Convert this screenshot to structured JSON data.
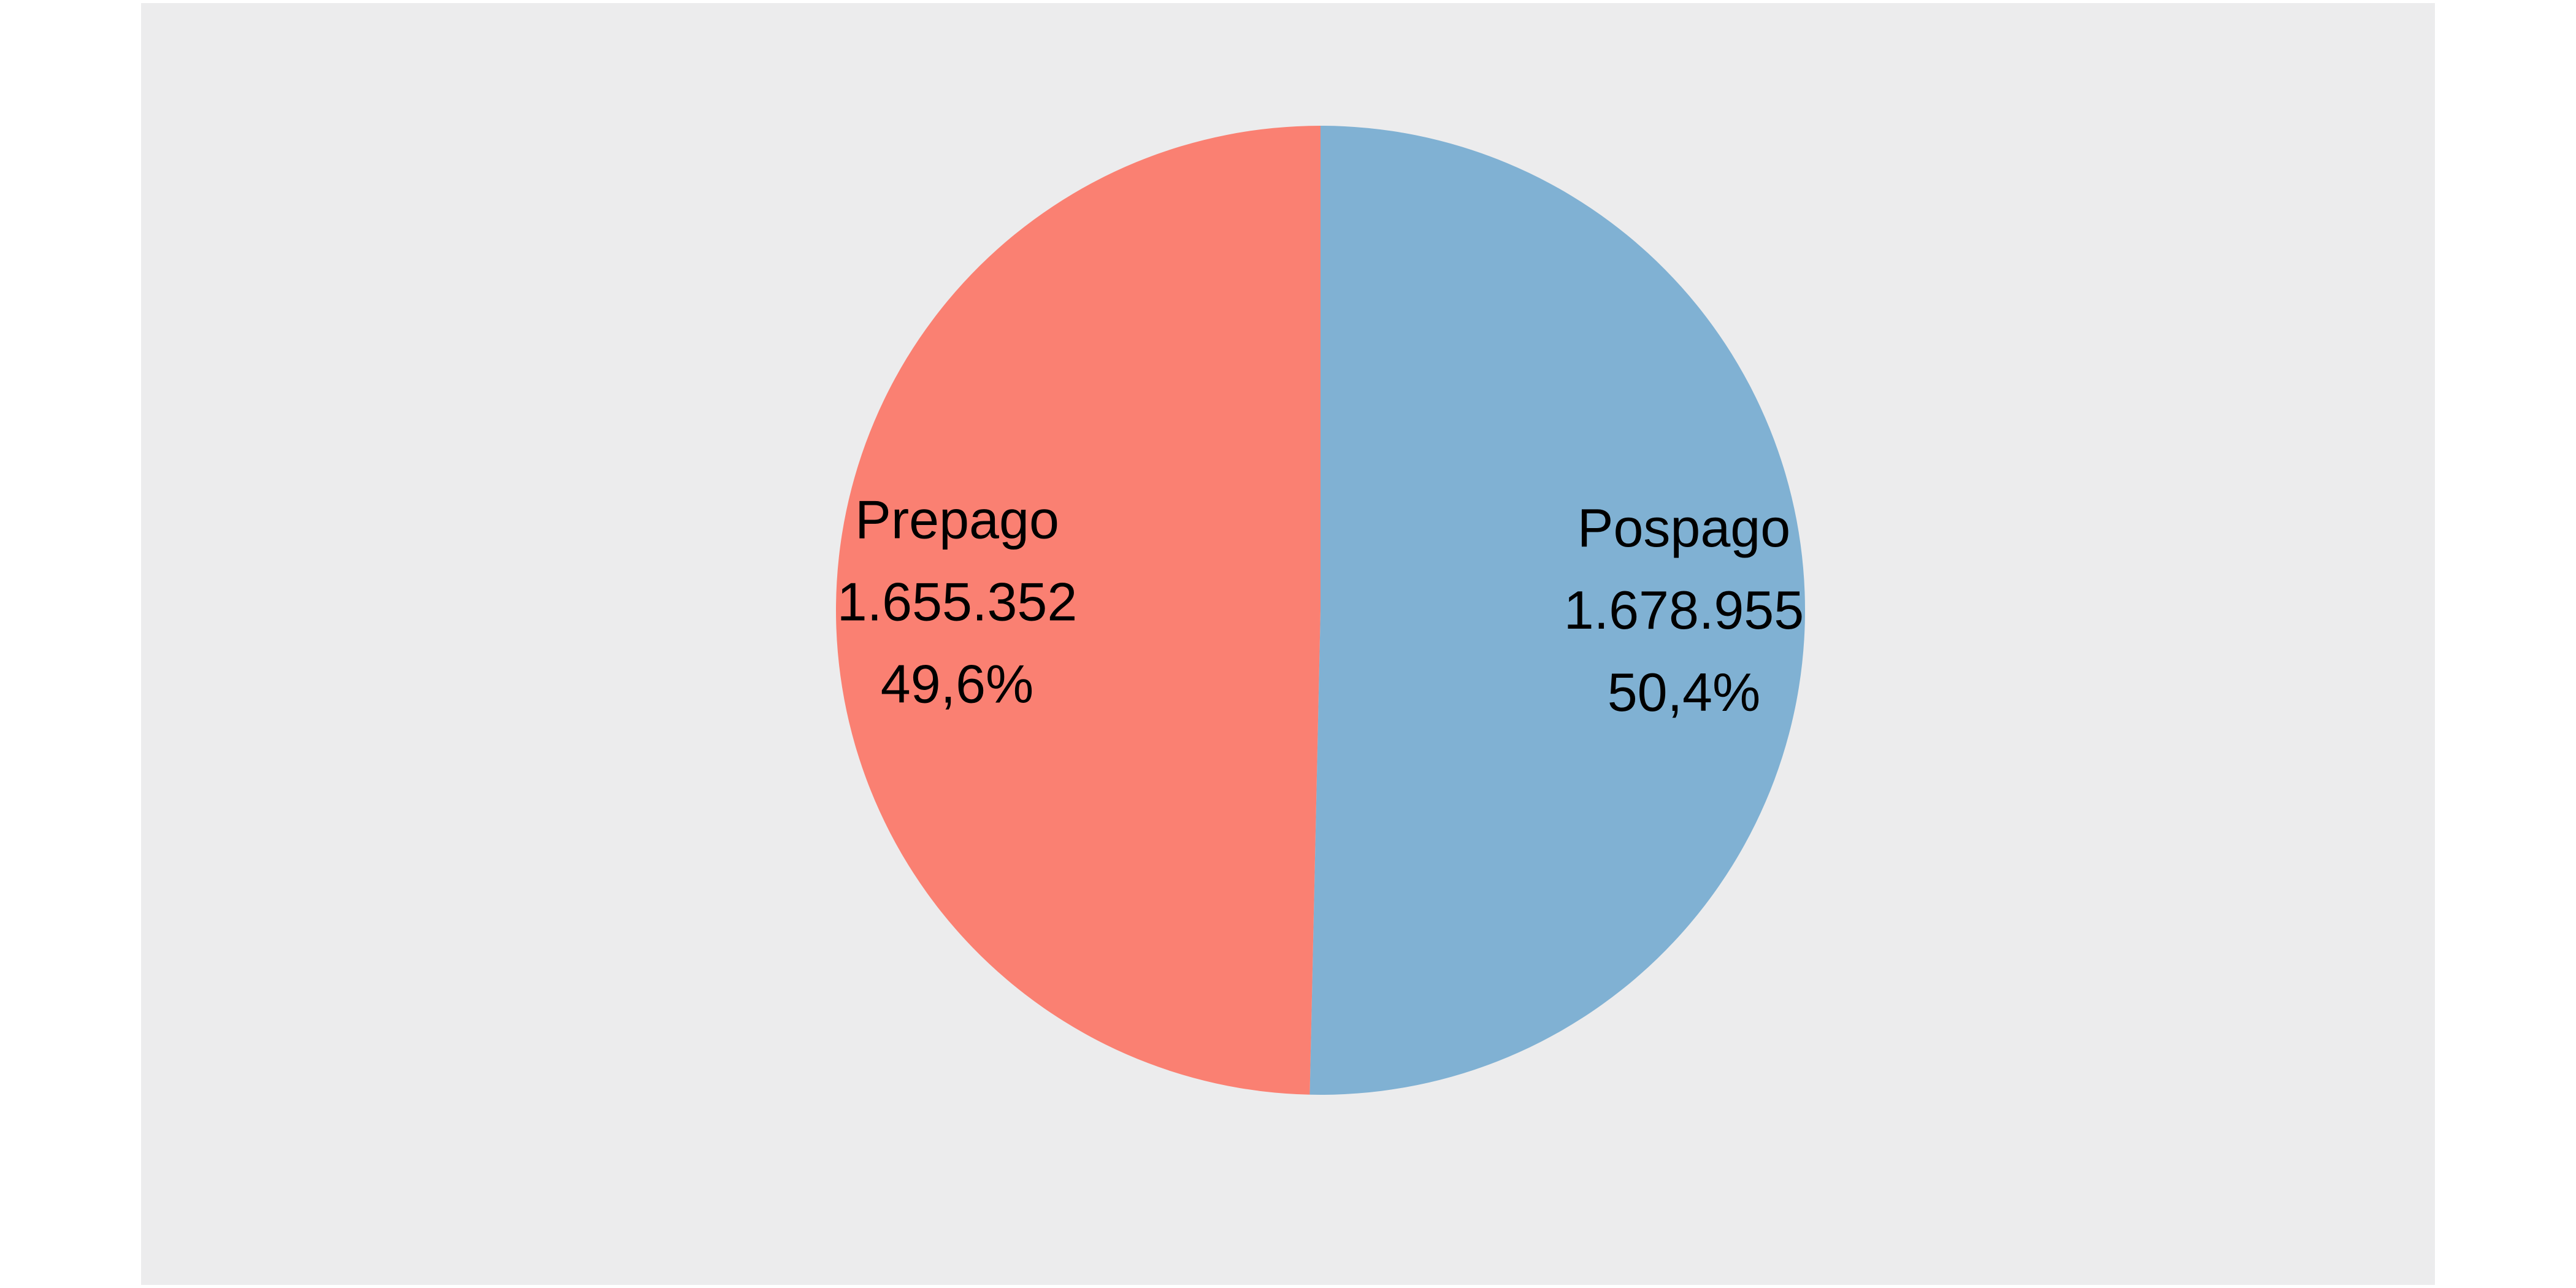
{
  "chart_data": {
    "type": "pie",
    "title": "",
    "slices": [
      {
        "name": "Prepago",
        "value": 1655352,
        "value_label": "1.655.352",
        "percent": 49.6,
        "percent_label": "49,6%",
        "color": "#fa8072"
      },
      {
        "name": "Pospago",
        "value": 1678955,
        "value_label": "1.678.955",
        "percent": 50.4,
        "percent_label": "50,4%",
        "color": "#80b1d3"
      }
    ],
    "direction": "clockwise",
    "start_angle": "top",
    "legend": "none",
    "background_color": "#ececed"
  }
}
